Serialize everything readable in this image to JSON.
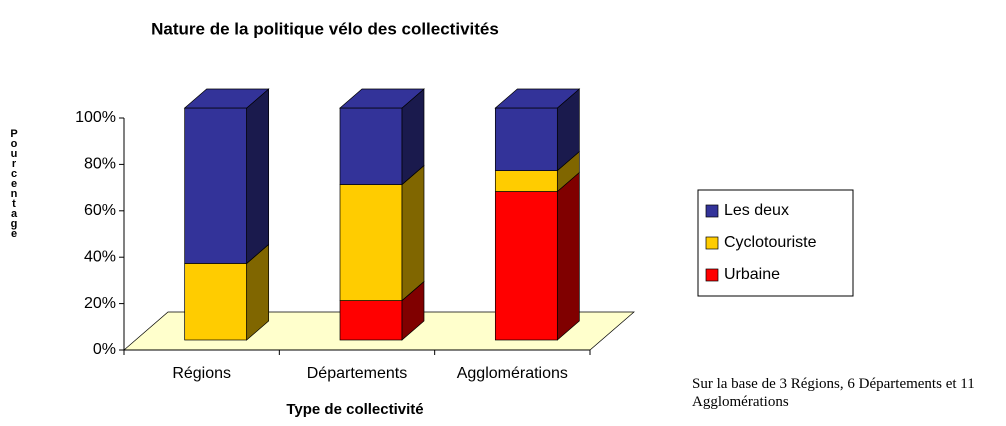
{
  "chart_data": {
    "type": "stacked_bar_3d",
    "title": "Nature de la politique vélo des collectivités",
    "x_label": "Type de collectivité",
    "y_label": "Pourcentage",
    "note": "Sur la base de 3 Régions, 6 Départements et 11 Agglomérations",
    "categories": [
      "Régions",
      "Départements",
      "Agglomérations"
    ],
    "series": [
      {
        "name": "Urbaine",
        "color": "#ff0000",
        "side_color": "#800000",
        "values": [
          0,
          17,
          64
        ]
      },
      {
        "name": "Cyclotouriste",
        "color": "#ffcc00",
        "side_color": "#806600",
        "values": [
          33,
          50,
          9
        ]
      },
      {
        "name": "Les deux",
        "color": "#333399",
        "side_color": "#1a1a4d",
        "values": [
          67,
          33,
          27
        ]
      }
    ],
    "ylim": [
      0,
      100
    ],
    "yticks": [
      {
        "value": 0,
        "label": "0%"
      },
      {
        "value": 20,
        "label": "20%"
      },
      {
        "value": 40,
        "label": "40%"
      },
      {
        "value": 60,
        "label": "60%"
      },
      {
        "value": 80,
        "label": "80%"
      },
      {
        "value": 100,
        "label": "100%"
      }
    ],
    "floor_color": "#ffffcc",
    "legend": "right"
  }
}
